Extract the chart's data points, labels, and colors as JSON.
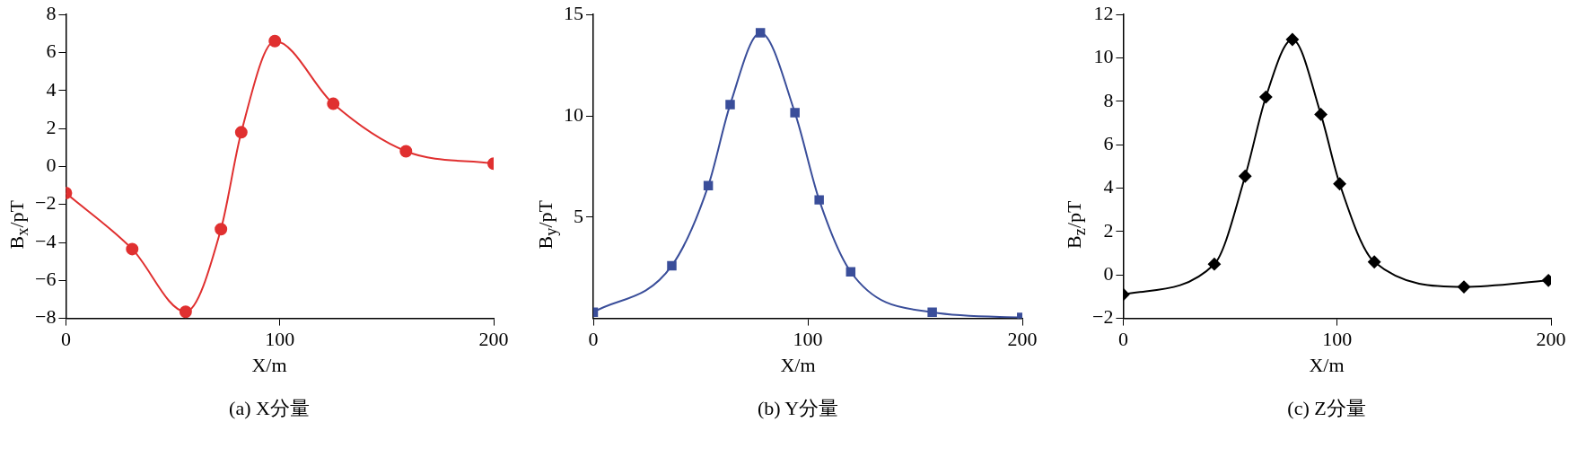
{
  "chart_data": [
    {
      "type": "line",
      "title": "(a) X分量",
      "xlabel": "X/m",
      "ylabel": "B$_{x}$/pT",
      "xlim": [
        0,
        200
      ],
      "xticks": [
        0,
        100,
        200
      ],
      "ylim": [
        -8,
        8
      ],
      "yticks": [
        -8,
        -6,
        -4,
        -2,
        0,
        2,
        4,
        6,
        8
      ],
      "marker": "circle",
      "line_style": "solid",
      "grid": false,
      "legend": false,
      "series": [
        {
          "color": "#e03030",
          "x": [
            0,
            31,
            56,
            72.5,
            82,
            97.7,
            125,
            159,
            200
          ],
          "values": [
            -1.4,
            -4.35,
            -7.65,
            -3.3,
            1.8,
            6.6,
            3.3,
            0.8,
            0.15
          ]
        }
      ]
    },
    {
      "type": "line",
      "title": "(b) Y分量",
      "xlabel": "X/m",
      "ylabel": "B$_{y}$/pT",
      "xlim": [
        0,
        200
      ],
      "xticks": [
        0,
        100,
        200
      ],
      "ylim": [
        0,
        15
      ],
      "yticks": [
        5,
        10,
        15
      ],
      "marker": "square",
      "line_style": "solid",
      "grid": false,
      "legend": false,
      "series": [
        {
          "color": "#3a4e9a",
          "x": [
            0,
            36.6,
            53.6,
            63.8,
            77.9,
            94,
            105.3,
            120,
            158,
            199.7
          ],
          "values": [
            0.3,
            2.6,
            6.55,
            10.55,
            14.1,
            10.15,
            5.85,
            2.3,
            0.3,
            0.05
          ]
        }
      ]
    },
    {
      "type": "line",
      "title": "(c) Z分量",
      "xlabel": "X/m",
      "ylabel": "B$_{z}$/pT",
      "xlim": [
        0,
        200
      ],
      "xticks": [
        0,
        100,
        200
      ],
      "ylim": [
        -2,
        12
      ],
      "yticks": [
        -2,
        0,
        2,
        4,
        6,
        8,
        10,
        12
      ],
      "marker": "diamond",
      "line_style": "solid",
      "grid": false,
      "legend": false,
      "series": [
        {
          "color": "#000000",
          "x": [
            0,
            42.6,
            57,
            66.7,
            79.1,
            92.4,
            101.2,
            117.4,
            159.3,
            198.8
          ],
          "values": [
            -0.9,
            0.5,
            4.55,
            8.2,
            10.85,
            7.4,
            4.2,
            0.6,
            -0.55,
            -0.25
          ]
        }
      ]
    }
  ]
}
